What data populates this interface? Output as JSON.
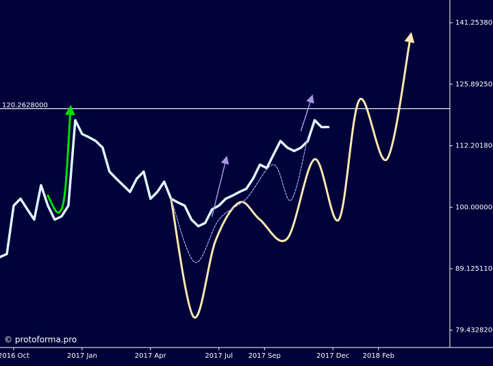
{
  "chart_data": {
    "type": "line",
    "log_y": true,
    "watermark": "© protoforma.pro",
    "xlim": [
      -0.6,
      19.13
    ],
    "ylim": [
      76.9,
      147.4
    ],
    "xticks": [
      {
        "value": 0,
        "label": "2016 Oct"
      },
      {
        "value": 3,
        "label": "2017 Jan"
      },
      {
        "value": 6,
        "label": "2017 Apr"
      },
      {
        "value": 9,
        "label": "2017 Jul"
      },
      {
        "value": 11,
        "label": "2017 Sep"
      },
      {
        "value": 14,
        "label": "2017 Dec"
      },
      {
        "value": 16,
        "label": "2018 Feb"
      }
    ],
    "yticks": [
      {
        "value": 141.2538,
        "label": "141.2538000"
      },
      {
        "value": 125.8925,
        "label": "125.8925000"
      },
      {
        "value": 112.2018,
        "label": "112.2018000"
      },
      {
        "value": 100,
        "label": "100.0000000"
      },
      {
        "value": 89.12511,
        "label": "89.1251100"
      },
      {
        "value": 79.43282,
        "label": "79.4328200"
      }
    ],
    "hline": {
      "value": 120.2628,
      "label": "120.2628000",
      "color": "#ffffff"
    },
    "series": [
      {
        "style": "line",
        "color": "#dff6ff",
        "x": [
          -0.6,
          -0.3,
          0,
          0.3,
          0.6,
          0.9,
          1.2,
          1.5,
          1.8,
          2.1,
          2.4,
          2.7,
          3,
          3.3,
          3.6,
          3.9,
          4.2,
          4.5,
          4.8,
          5.1,
          5.4,
          5.7,
          6,
          6.3,
          6.6,
          6.9,
          7.2,
          7.5,
          7.8,
          8.1,
          8.4,
          8.7,
          9,
          9.3,
          9.6,
          9.9,
          10.2,
          10.5,
          10.8,
          11.1,
          11.4,
          11.7,
          12,
          12.3,
          12.6,
          12.9,
          13.2,
          13.5,
          13.8
        ],
        "values": [
          91.1,
          91.6,
          100.3,
          101.6,
          99.6,
          97.7,
          104.2,
          100.3,
          97.7,
          98.3,
          100.3,
          117.7,
          114.7,
          114.0,
          113.2,
          111.8,
          106.9,
          105.5,
          104.2,
          102.9,
          105.5,
          106.9,
          101.6,
          102.9,
          104.9,
          101.6,
          100.9,
          100.3,
          97.7,
          96.5,
          97.1,
          99.6,
          100.3,
          101.6,
          102.2,
          102.9,
          103.5,
          105.5,
          108.3,
          107.6,
          110.4,
          113.2,
          111.8,
          111.1,
          111.8,
          113.2,
          117.7,
          116.2,
          116.2
        ]
      },
      {
        "style": "curve-arrow",
        "color": "#ffe9b0",
        "x": [
          6.9,
          7.9,
          8.86,
          9.9,
          10.8,
          12.0,
          13.2,
          14.26,
          15.17,
          16.37,
          17.4
        ],
        "values": [
          101.6,
          81.4,
          94.0,
          100.9,
          97.7,
          94.3,
          109.4,
          97.7,
          122.3,
          109.4,
          137.5
        ]
      },
      {
        "style": "dashed-curve",
        "color": "#a0a0e0",
        "x": [
          6.9,
          7.95,
          9.0,
          10.2,
          11.4,
          12.16,
          12.9
        ],
        "values": [
          101.6,
          90.2,
          97.7,
          101.6,
          108.3,
          101.3,
          114.0
        ]
      },
      {
        "style": "curve-arrow",
        "color": "#00e000",
        "x": [
          1.5,
          1.95,
          2.25,
          2.49
        ],
        "values": [
          102.2,
          99.0,
          102.9,
          120.0
        ]
      },
      {
        "style": "curve-arrow",
        "color": "#a898e0",
        "x": [
          8.7,
          9.31
        ],
        "values": [
          98.3,
          109.3
        ]
      },
      {
        "style": "curve-arrow",
        "color": "#a898e0",
        "x": [
          12.6,
          13.06
        ],
        "values": [
          115.4,
          122.6
        ]
      }
    ]
  }
}
